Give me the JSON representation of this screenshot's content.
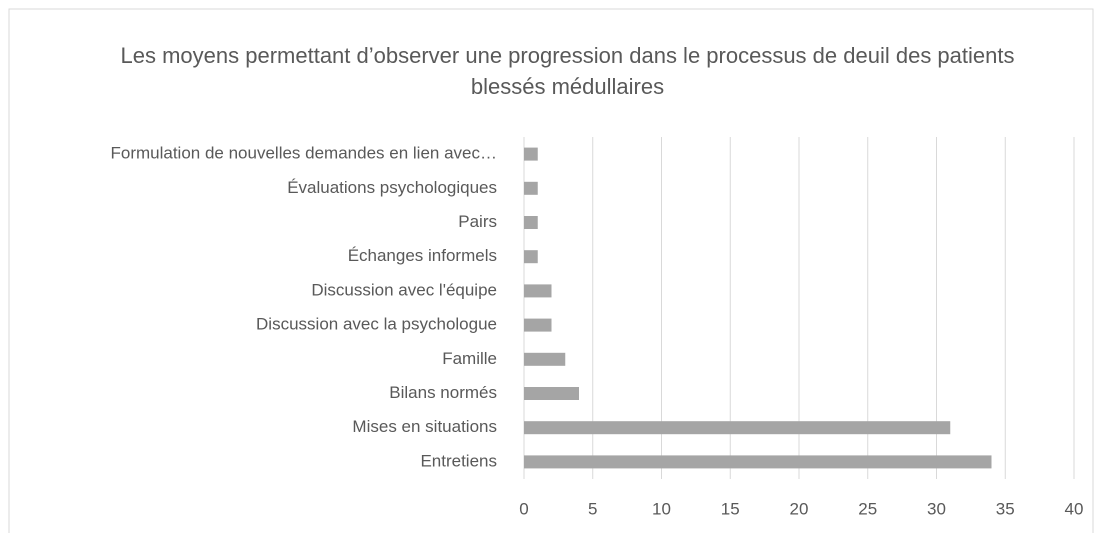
{
  "chart_data": {
    "type": "bar",
    "orientation": "horizontal",
    "title": "Les moyens permettant d’observer une progression dans le processus de deuil des patients blessés médullaires",
    "categories": [
      "Entretiens",
      "Mises en situations",
      "Bilans normés",
      "Famille",
      "Discussion avec la psychologue",
      "Discussion avec l'équipe",
      "Échanges informels",
      "Pairs",
      "Évaluations psychologiques",
      "Formulation de nouvelles demandes en lien avec…"
    ],
    "values": [
      34,
      31,
      4,
      3,
      2,
      2,
      1,
      1,
      1,
      1
    ],
    "color": "#a5a5a5",
    "xlim": [
      0,
      40
    ],
    "xticks": [
      0,
      5,
      10,
      15,
      20,
      25,
      30,
      35,
      40
    ],
    "grid": true
  }
}
